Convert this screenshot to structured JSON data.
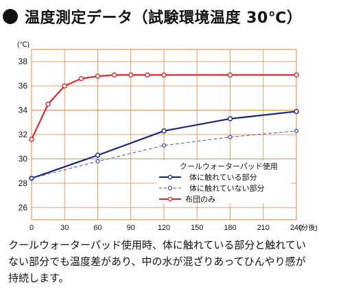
{
  "title": "温度測定データ（試験環境温度 30℃）",
  "caption_lines": [
    "クールウォーターパッド使用時、体に触れている部分と触れてい",
    "ない部分でも温度差があり、中の水が混ざりあってひんやり感が",
    "持続します。"
  ],
  "chart_data": {
    "type": "line",
    "y_unit": "(℃)",
    "x_unit": "(分後)",
    "xlim": [
      0,
      240
    ],
    "ylim": [
      25,
      39
    ],
    "x_ticks": [
      "0",
      "30",
      "60",
      "90",
      "120",
      "150",
      "180",
      "210",
      "240"
    ],
    "y_ticks": [
      "26",
      "28",
      "30",
      "32",
      "34",
      "36",
      "38"
    ],
    "grid": true,
    "legend": {
      "title": "クールウォーターパッド使用",
      "position": "bottom-right"
    },
    "series": [
      {
        "name": "体に触れている部分",
        "color": "#1a237e",
        "style": "solid",
        "marker": "open-circle",
        "x": [
          0,
          60,
          120,
          180,
          240
        ],
        "y": [
          28.4,
          30.3,
          32.3,
          33.3,
          33.9
        ]
      },
      {
        "name": "体に触れていない部分",
        "color": "#4a5a9a",
        "style": "dashed",
        "marker": "open-circle",
        "x": [
          0,
          60,
          120,
          180,
          240
        ],
        "y": [
          28.4,
          29.8,
          31.1,
          31.8,
          32.3
        ]
      },
      {
        "name": "布団のみ",
        "color": "#d9262c",
        "style": "solid",
        "marker": "open-circle",
        "x": [
          0,
          15,
          30,
          45,
          60,
          75,
          90,
          105,
          120,
          180,
          240
        ],
        "y": [
          31.6,
          34.5,
          36.0,
          36.6,
          36.8,
          36.9,
          36.9,
          36.9,
          36.9,
          36.9,
          36.9
        ]
      }
    ]
  }
}
